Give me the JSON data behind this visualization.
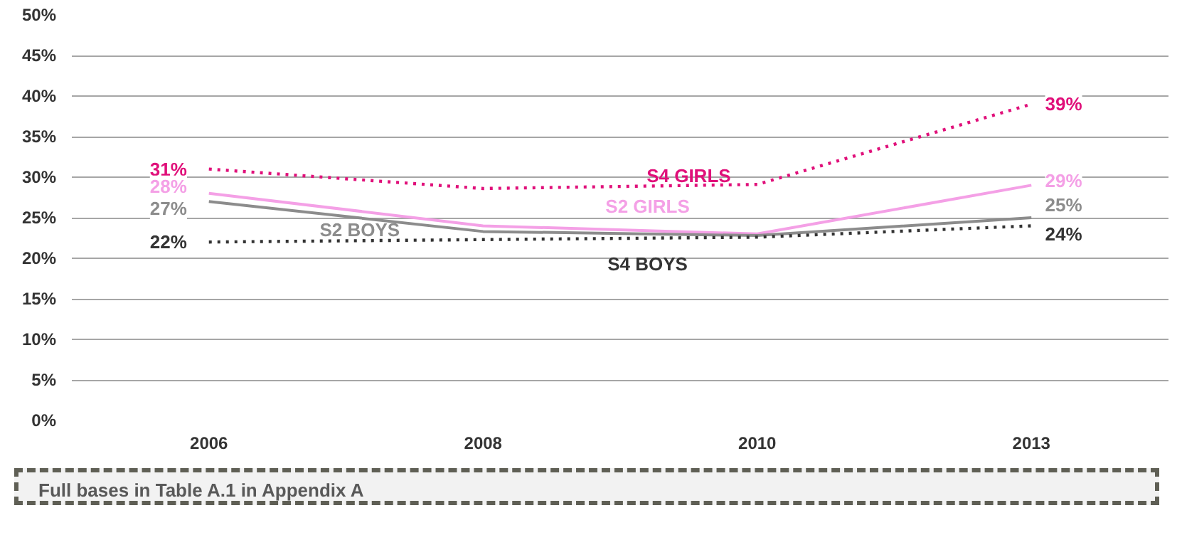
{
  "chart_data": {
    "type": "line",
    "categories": [
      "2006",
      "2008",
      "2010",
      "2013"
    ],
    "ylim": [
      0,
      50
    ],
    "yticks": [
      {
        "value": 0,
        "label": "0%"
      },
      {
        "value": 5,
        "label": "5%"
      },
      {
        "value": 10,
        "label": "10%"
      },
      {
        "value": 15,
        "label": "15%"
      },
      {
        "value": 20,
        "label": "20%"
      },
      {
        "value": 25,
        "label": "25%"
      },
      {
        "value": 30,
        "label": "30%"
      },
      {
        "value": 35,
        "label": "35%"
      },
      {
        "value": 40,
        "label": "40%"
      },
      {
        "value": 45,
        "label": "45%"
      },
      {
        "value": 50,
        "label": "50%"
      }
    ],
    "grid": "y",
    "marker": "none",
    "series": [
      {
        "name": "S4 GIRLS",
        "color": "#e0107a",
        "line_style": "dotted",
        "values": [
          31,
          28.6,
          29.1,
          39
        ],
        "value_labels": [
          "31%",
          null,
          null,
          "39%"
        ]
      },
      {
        "name": "S2 GIRLS",
        "color": "#f4a0e6",
        "line_style": "solid",
        "values": [
          28,
          24,
          23,
          29
        ],
        "value_labels": [
          "28%",
          null,
          null,
          "29%"
        ]
      },
      {
        "name": "S2 BOYS",
        "color": "#8c8c8c",
        "line_style": "solid",
        "values": [
          27,
          23.3,
          22.8,
          25
        ],
        "value_labels": [
          "27%",
          null,
          null,
          "25%"
        ]
      },
      {
        "name": "S4 BOYS",
        "color": "#333333",
        "line_style": "dotted",
        "values": [
          22,
          22.3,
          22.6,
          24
        ],
        "value_labels": [
          "22%",
          null,
          null,
          "24%"
        ]
      }
    ],
    "annotations": [
      "Full bases in Table A.1 in Appendix A"
    ]
  }
}
